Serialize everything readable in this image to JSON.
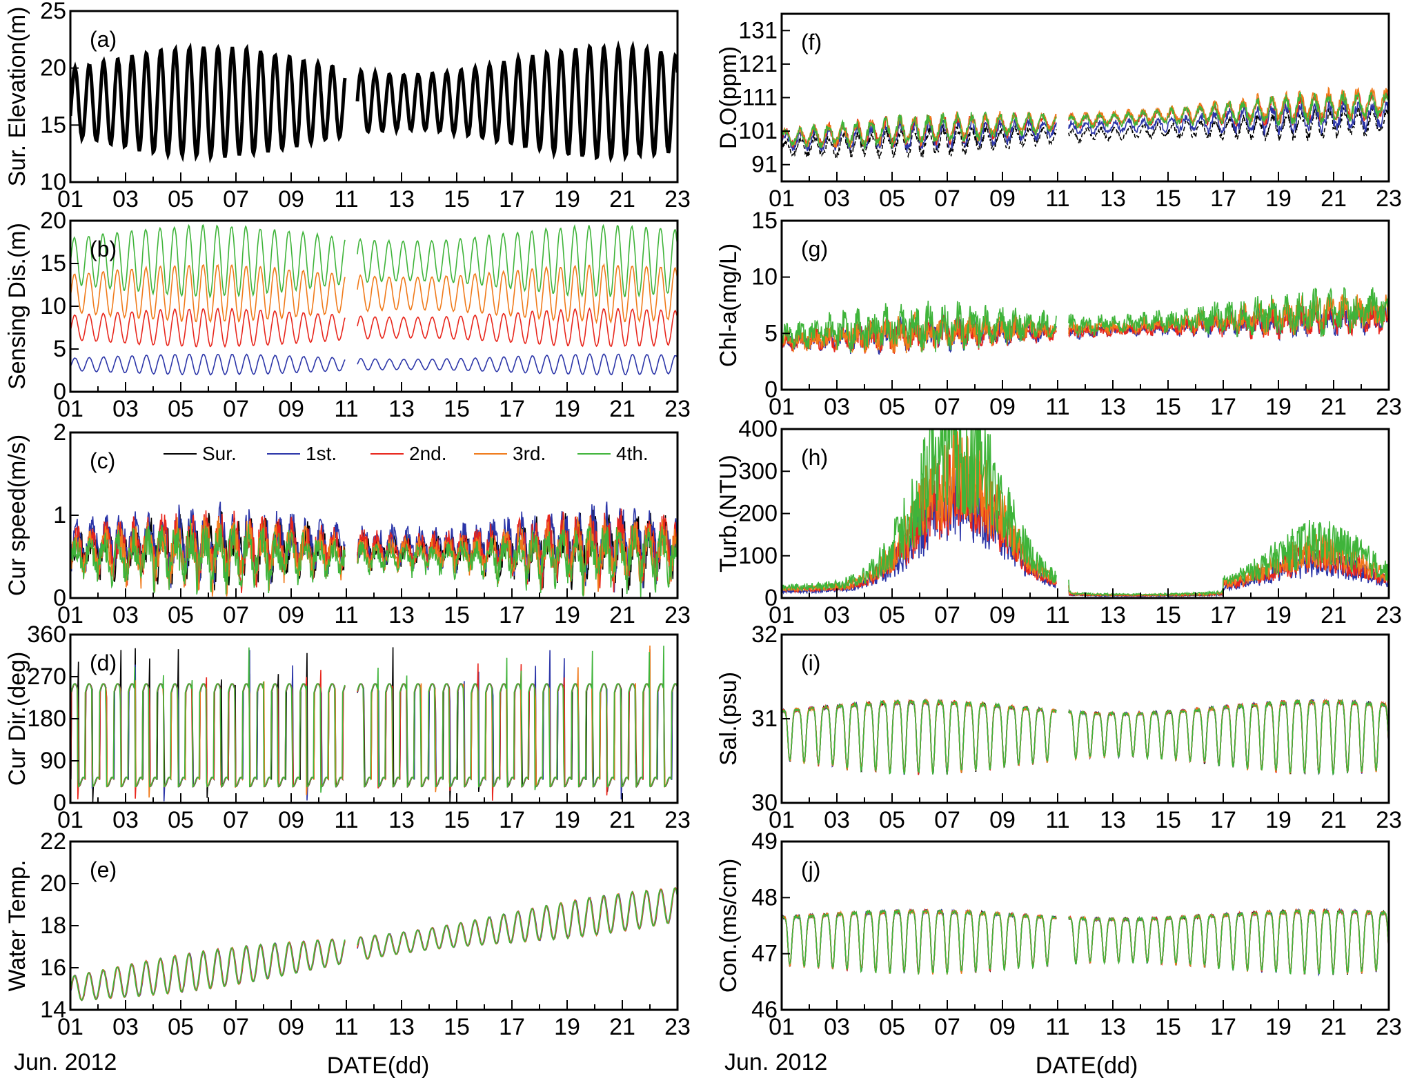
{
  "figure": {
    "footer_left_date": "Jun. 2012",
    "footer_right_date": "Jun. 2012",
    "footer_left_xlabel": "DATE(dd)",
    "footer_right_xlabel": "DATE(dd)"
  },
  "legend": [
    {
      "name": "Sur.",
      "color": "#000000"
    },
    {
      "name": "1st.",
      "color": "#2b35a8"
    },
    {
      "name": "2nd.",
      "color": "#e8261c"
    },
    {
      "name": "3rd.",
      "color": "#f07a1a"
    },
    {
      "name": "4th.",
      "color": "#3fb43a"
    }
  ],
  "chart_data": [
    {
      "id": "a",
      "tag": "(a)",
      "type": "line",
      "ylabel": "Sur. Elevation(m)",
      "ylim": [
        10,
        25
      ],
      "yticks": [
        10,
        15,
        20,
        25
      ],
      "xticks": [
        "01",
        "03",
        "05",
        "07",
        "09",
        "11",
        "13",
        "15",
        "17",
        "19",
        "21",
        "23"
      ],
      "xlim": [
        1,
        23
      ],
      "gap": [
        10.95,
        11.4
      ],
      "series": [
        {
          "name": "Sur.",
          "color": "#000000",
          "mean": 17.0,
          "amp": 3.6,
          "amp_var": 1.2
        }
      ]
    },
    {
      "id": "b",
      "tag": "(b)",
      "type": "line",
      "ylabel": "Sensing Dis.(m)",
      "ylim": [
        0,
        20
      ],
      "yticks": [
        0,
        5,
        10,
        15,
        20
      ],
      "xticks": [
        "01",
        "03",
        "05",
        "07",
        "09",
        "11",
        "13",
        "15",
        "17",
        "19",
        "21",
        "23"
      ],
      "xlim": [
        1,
        23
      ],
      "gap": [
        10.95,
        11.4
      ],
      "series": [
        {
          "name": "1st.",
          "color": "#2b35a8",
          "mean": 3.2,
          "amp": 0.9,
          "amp_var": 0.3
        },
        {
          "name": "2nd.",
          "color": "#e8261c",
          "mean": 7.5,
          "amp": 1.7,
          "amp_var": 0.5
        },
        {
          "name": "3rd.",
          "color": "#f07a1a",
          "mean": 11.5,
          "amp": 2.6,
          "amp_var": 0.7
        },
        {
          "name": "4th.",
          "color": "#3fb43a",
          "mean": 15.3,
          "amp": 3.2,
          "amp_var": 0.9
        }
      ]
    },
    {
      "id": "c",
      "tag": "(c)",
      "type": "line",
      "ylabel": "Cur speed(m/s)",
      "ylim": [
        0,
        2
      ],
      "yticks": [
        0,
        1,
        2
      ],
      "xticks": [
        "01",
        "03",
        "05",
        "07",
        "09",
        "11",
        "13",
        "15",
        "17",
        "19",
        "21",
        "23"
      ],
      "xlim": [
        1,
        23
      ],
      "gap": [
        10.95,
        11.4
      ],
      "series": [
        {
          "name": "Sur.",
          "color": "#000000",
          "mean": 0.55,
          "amp": 0.4,
          "amp_var": 0.15
        },
        {
          "name": "1st.",
          "color": "#2b35a8",
          "mean": 0.6,
          "amp": 0.45,
          "amp_var": 0.15
        },
        {
          "name": "2nd.",
          "color": "#e8261c",
          "mean": 0.55,
          "amp": 0.42,
          "amp_var": 0.15
        },
        {
          "name": "3rd.",
          "color": "#f07a1a",
          "mean": 0.5,
          "amp": 0.4,
          "amp_var": 0.15
        },
        {
          "name": "4th.",
          "color": "#3fb43a",
          "mean": 0.45,
          "amp": 0.38,
          "amp_var": 0.15
        }
      ]
    },
    {
      "id": "d",
      "tag": "(d)",
      "type": "line",
      "ylabel": "Cur Dir.(deg)",
      "ylim": [
        0,
        360
      ],
      "yticks": [
        0,
        90,
        180,
        270,
        360
      ],
      "xticks": [
        "01",
        "03",
        "05",
        "07",
        "09",
        "11",
        "13",
        "15",
        "17",
        "19",
        "21",
        "23"
      ],
      "xlim": [
        1,
        23
      ],
      "gap": [
        10.95,
        11.4
      ],
      "series": [
        {
          "name": "Sur.",
          "color": "#000000",
          "mean": 140,
          "amp": 95,
          "amp_var": 0
        },
        {
          "name": "1st.",
          "color": "#2b35a8",
          "mean": 140,
          "amp": 95,
          "amp_var": 0
        },
        {
          "name": "2nd.",
          "color": "#e8261c",
          "mean": 140,
          "amp": 95,
          "amp_var": 0
        },
        {
          "name": "3rd.",
          "color": "#f07a1a",
          "mean": 140,
          "amp": 95,
          "amp_var": 0
        },
        {
          "name": "4th.",
          "color": "#3fb43a",
          "mean": 140,
          "amp": 95,
          "amp_var": 0
        }
      ]
    },
    {
      "id": "e",
      "tag": "(e)",
      "type": "line",
      "ylabel": "Water Temp.",
      "ylim": [
        14,
        22
      ],
      "yticks": [
        14,
        16,
        18,
        20,
        22
      ],
      "xticks": [
        "01",
        "03",
        "05",
        "07",
        "09",
        "11",
        "13",
        "15",
        "17",
        "19",
        "21",
        "23"
      ],
      "xlim": [
        1,
        23
      ],
      "gap": [
        10.95,
        11.4
      ],
      "series": [
        {
          "name": "1st.",
          "color": "#2b35a8",
          "start": 15.0,
          "end": 19.0,
          "amp": 0.7,
          "amp_var": 0.2
        },
        {
          "name": "2nd.",
          "color": "#e8261c",
          "start": 15.0,
          "end": 19.0,
          "amp": 0.7,
          "amp_var": 0.2
        },
        {
          "name": "3rd.",
          "color": "#f07a1a",
          "start": 15.0,
          "end": 19.0,
          "amp": 0.7,
          "amp_var": 0.2
        },
        {
          "name": "4th.",
          "color": "#3fb43a",
          "start": 15.0,
          "end": 19.0,
          "amp": 0.7,
          "amp_var": 0.2
        }
      ]
    },
    {
      "id": "f",
      "tag": "(f)",
      "type": "line",
      "ylabel": "D.O(ppm)",
      "ylim": [
        86,
        136
      ],
      "yticks": [
        91,
        101,
        111,
        121,
        131
      ],
      "xticks": [
        "01",
        "03",
        "05",
        "07",
        "09",
        "11",
        "13",
        "15",
        "17",
        "19",
        "21",
        "23"
      ],
      "xlim": [
        1,
        23
      ],
      "gap": [
        10.95,
        11.4
      ],
      "series": [
        {
          "name": "Sur.",
          "color": "#000000",
          "start": 96,
          "end": 104,
          "amp": 2.5,
          "amp_var": 1
        },
        {
          "name": "1st.",
          "color": "#2b35a8",
          "start": 98,
          "end": 106,
          "amp": 2.5,
          "amp_var": 1
        },
        {
          "name": "2nd.",
          "color": "#e8261c",
          "start": 99,
          "end": 109,
          "amp": 2.5,
          "amp_var": 1
        },
        {
          "name": "3rd.",
          "color": "#f07a1a",
          "start": 99,
          "end": 110,
          "amp": 2.5,
          "amp_var": 1
        },
        {
          "name": "4th.",
          "color": "#3fb43a",
          "start": 99,
          "end": 109,
          "amp": 2.5,
          "amp_var": 1
        }
      ]
    },
    {
      "id": "g",
      "tag": "(g)",
      "type": "line",
      "ylabel": "Chl-a(mg/L)",
      "ylim": [
        0,
        15
      ],
      "yticks": [
        0,
        5,
        10,
        15
      ],
      "xticks": [
        "01",
        "03",
        "05",
        "07",
        "09",
        "11",
        "13",
        "15",
        "17",
        "19",
        "21",
        "23"
      ],
      "xlim": [
        1,
        23
      ],
      "gap": [
        10.95,
        11.4
      ],
      "series": [
        {
          "name": "1st.",
          "color": "#2b35a8",
          "start": 4,
          "end": 6,
          "amp": 1.0,
          "amp_var": 0.5
        },
        {
          "name": "2nd.",
          "color": "#e8261c",
          "start": 4,
          "end": 6,
          "amp": 1.0,
          "amp_var": 0.5
        },
        {
          "name": "3rd.",
          "color": "#f07a1a",
          "start": 4,
          "end": 6.5,
          "amp": 1.1,
          "amp_var": 0.5
        },
        {
          "name": "4th.",
          "color": "#3fb43a",
          "start": 4.5,
          "end": 6.5,
          "amp": 1.4,
          "amp_var": 0.6
        }
      ]
    },
    {
      "id": "h",
      "tag": "(h)",
      "type": "line",
      "ylabel": "Turb.(NTU)",
      "ylim": [
        0,
        400
      ],
      "yticks": [
        0,
        100,
        200,
        300,
        400
      ],
      "xticks": [
        "01",
        "03",
        "05",
        "07",
        "09",
        "11",
        "13",
        "15",
        "17",
        "19",
        "21",
        "23"
      ],
      "xlim": [
        1,
        23
      ],
      "gap": [
        10.95,
        11.4
      ],
      "series": [
        {
          "name": "1st.",
          "color": "#2b35a8",
          "mean": 30,
          "amp": 25,
          "amp_var": 10
        },
        {
          "name": "2nd.",
          "color": "#e8261c",
          "mean": 35,
          "amp": 30,
          "amp_var": 10
        },
        {
          "name": "3rd.",
          "color": "#f07a1a",
          "mean": 40,
          "amp": 35,
          "amp_var": 10
        },
        {
          "name": "4th.",
          "color": "#3fb43a",
          "mean": 45,
          "amp": 45,
          "amp_var": 15
        }
      ]
    },
    {
      "id": "i",
      "tag": "(i)",
      "type": "line",
      "ylabel": "Sal.(psu)",
      "ylim": [
        30,
        32
      ],
      "yticks": [
        30,
        31,
        32
      ],
      "xticks": [
        "01",
        "03",
        "05",
        "07",
        "09",
        "11",
        "13",
        "15",
        "17",
        "19",
        "21",
        "23"
      ],
      "xlim": [
        1,
        23
      ],
      "gap": [
        10.95,
        11.4
      ],
      "series": [
        {
          "name": "Sur.",
          "color": "#000000",
          "mean": 30.85,
          "amp": 0.4,
          "amp_var": 0.1
        },
        {
          "name": "1st.",
          "color": "#2b35a8",
          "mean": 30.85,
          "amp": 0.4,
          "amp_var": 0.1
        },
        {
          "name": "2nd.",
          "color": "#e8261c",
          "mean": 30.85,
          "amp": 0.4,
          "amp_var": 0.1
        },
        {
          "name": "3rd.",
          "color": "#f07a1a",
          "mean": 30.85,
          "amp": 0.4,
          "amp_var": 0.1
        },
        {
          "name": "4th.",
          "color": "#3fb43a",
          "mean": 30.85,
          "amp": 0.4,
          "amp_var": 0.1
        }
      ]
    },
    {
      "id": "j",
      "tag": "(j)",
      "type": "line",
      "ylabel": "Con.(ms/cm)",
      "ylim": [
        46,
        49
      ],
      "yticks": [
        46,
        47,
        48,
        49
      ],
      "xticks": [
        "01",
        "03",
        "05",
        "07",
        "09",
        "11",
        "13",
        "15",
        "17",
        "19",
        "21",
        "23"
      ],
      "xlim": [
        1,
        23
      ],
      "gap": [
        10.95,
        11.4
      ],
      "series": [
        {
          "name": "Sur.",
          "color": "#000000",
          "mean": 47.3,
          "amp": 0.55,
          "amp_var": 0.1
        },
        {
          "name": "1st.",
          "color": "#2b35a8",
          "mean": 47.3,
          "amp": 0.55,
          "amp_var": 0.1
        },
        {
          "name": "2nd.",
          "color": "#e8261c",
          "mean": 47.3,
          "amp": 0.55,
          "amp_var": 0.1
        },
        {
          "name": "3rd.",
          "color": "#f07a1a",
          "mean": 47.3,
          "amp": 0.55,
          "amp_var": 0.1
        },
        {
          "name": "4th.",
          "color": "#3fb43a",
          "mean": 47.3,
          "amp": 0.55,
          "amp_var": 0.1
        }
      ]
    }
  ]
}
